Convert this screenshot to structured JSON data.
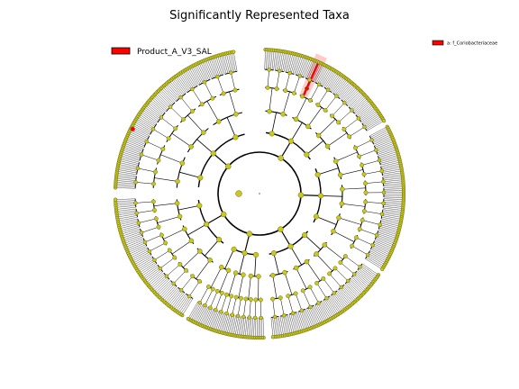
{
  "chart_data": {
    "type": "cladogram",
    "title": "Significantly Represented Taxa",
    "legend": [
      {
        "label": "Product_A_V3_SAL",
        "color": "#ff0000"
      }
    ],
    "clade_legend": [
      {
        "label": "a: f_Coriobacteriaceae",
        "color": "#ff0000"
      }
    ],
    "highlighted_clade": {
      "letter": "a",
      "name": "f_Coriobacteriaceae",
      "group": "Product_A_V3_SAL"
    },
    "levels": 6,
    "node_color": "#c8c81e",
    "highlight_color": "#ff0000",
    "clades": [
      {
        "angle_start": 272,
        "angle_end": 350,
        "leaves": 34
      },
      {
        "angle_start": 2,
        "angle_end": 60,
        "leaves": 26
      },
      {
        "angle_start": 62,
        "angle_end": 122,
        "leaves": 28
      },
      {
        "angle_start": 124,
        "angle_end": 175,
        "leaves": 22
      },
      {
        "angle_start": 178,
        "angle_end": 210,
        "leaves": 14
      },
      {
        "angle_start": 212,
        "angle_end": 268,
        "leaves": 24
      }
    ]
  }
}
